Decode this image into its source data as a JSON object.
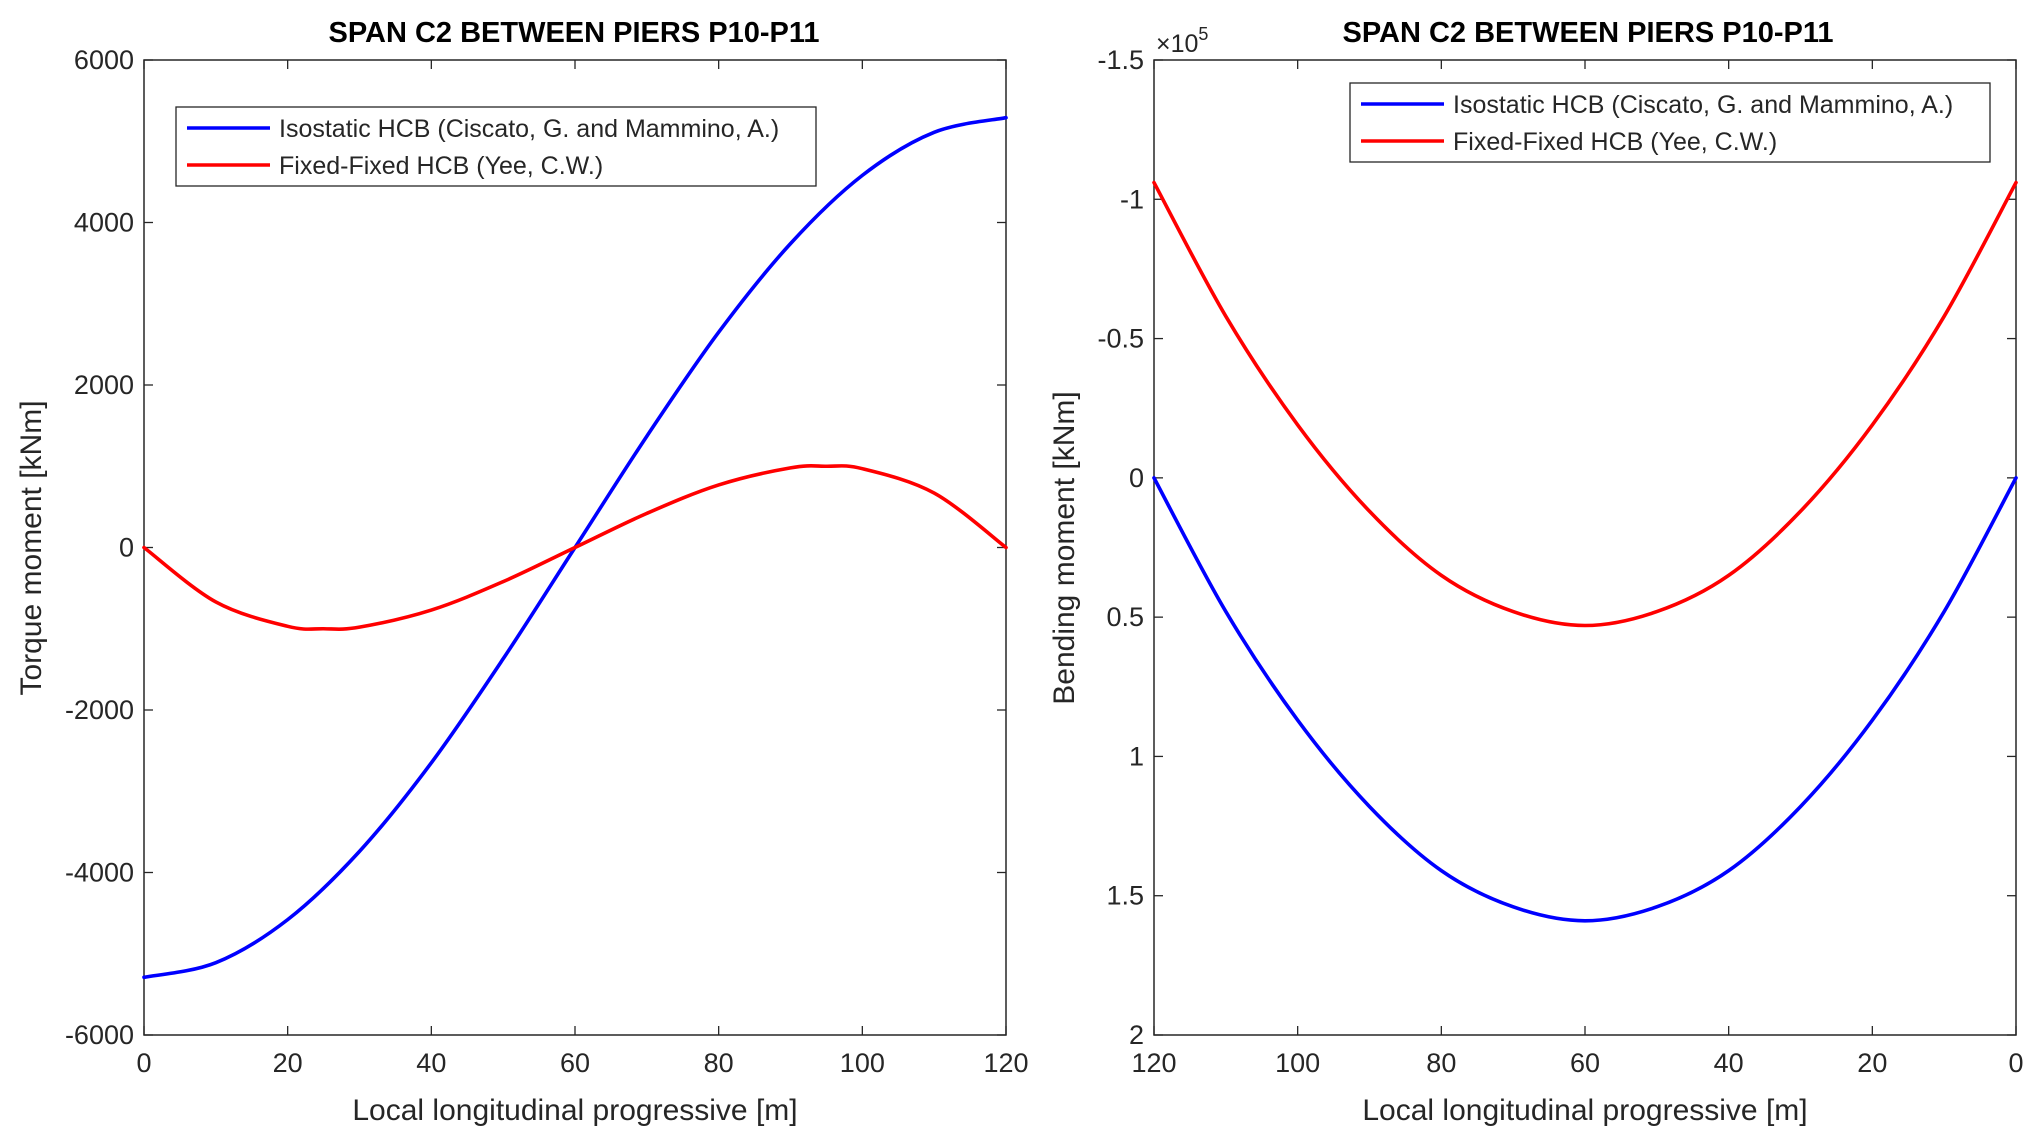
{
  "chart_data": [
    {
      "type": "line",
      "title": "SPAN C2 BETWEEN PIERS P10-P11",
      "xlabel": "Local longitudinal progressive [m]",
      "ylabel": "Torque moment [kNm]",
      "xlim": [
        0,
        120
      ],
      "ylim": [
        -6000,
        6000
      ],
      "x_reversed": false,
      "y_reversed": false,
      "xticks": [
        0,
        20,
        40,
        60,
        80,
        100,
        120
      ],
      "xtick_labels": [
        "0",
        "20",
        "40",
        "60",
        "80",
        "100",
        "120"
      ],
      "yticks": [
        -6000,
        -4000,
        -2000,
        0,
        2000,
        4000,
        6000
      ],
      "ytick_labels": [
        "-6000",
        "-4000",
        "-2000",
        "0",
        "2000",
        "4000",
        "6000"
      ],
      "grid": false,
      "legend_position": "top-left",
      "series": [
        {
          "name": "Isostatic HCB (Ciscato, G. and Mammino, A.)",
          "color": "#0000ff",
          "x": [
            0,
            10,
            20,
            30,
            40,
            50,
            60,
            70,
            80,
            90,
            100,
            110,
            120
          ],
          "y": [
            -5290,
            -5110,
            -4580,
            -3740,
            -2650,
            -1370,
            0,
            1370,
            2650,
            3740,
            4580,
            5110,
            5290
          ]
        },
        {
          "name": "Fixed-Fixed HCB (Yee, C.W.)",
          "color": "#ff0000",
          "x": [
            0,
            10,
            20,
            25,
            30,
            40,
            50,
            60,
            70,
            80,
            90,
            95,
            100,
            110,
            120
          ],
          "y": [
            0,
            -670,
            -970,
            -1000,
            -980,
            -770,
            -420,
            0,
            420,
            770,
            980,
            1000,
            970,
            670,
            0
          ]
        }
      ]
    },
    {
      "type": "line",
      "title": "SPAN C2 BETWEEN PIERS P10-P11",
      "xlabel": "Local longitudinal progressive [m]",
      "ylabel": "Bending moment [kNm]",
      "y_exponent_base": "×10",
      "y_exponent_power": "5",
      "xlim": [
        0,
        120
      ],
      "ylim": [
        -1.5,
        2
      ],
      "x_reversed": true,
      "y_reversed": true,
      "xticks": [
        120,
        100,
        80,
        60,
        40,
        20,
        0
      ],
      "xtick_labels": [
        "120",
        "100",
        "80",
        "60",
        "40",
        "20",
        "0"
      ],
      "yticks": [
        -1.5,
        -1,
        -0.5,
        0,
        0.5,
        1,
        1.5,
        2
      ],
      "ytick_labels": [
        "-1.5",
        "-1",
        "-0.5",
        "0",
        "0.5",
        "1",
        "1.5",
        "2"
      ],
      "grid": false,
      "legend_position": "top-right",
      "series": [
        {
          "name": "Isostatic HCB (Ciscato, G. and Mammino, A.)",
          "color": "#0000ff",
          "x": [
            0,
            10,
            20,
            30,
            40,
            50,
            60,
            70,
            80,
            90,
            100,
            110,
            120
          ],
          "y": [
            0,
            0.48,
            0.87,
            1.18,
            1.41,
            1.54,
            1.59,
            1.54,
            1.41,
            1.18,
            0.87,
            0.48,
            0
          ]
        },
        {
          "name": "Fixed-Fixed HCB (Yee, C.W.)",
          "color": "#ff0000",
          "x": [
            0,
            10,
            20,
            30,
            40,
            50,
            60,
            70,
            80,
            90,
            100,
            110,
            120
          ],
          "y": [
            -1.06,
            -0.58,
            -0.19,
            0.12,
            0.35,
            0.48,
            0.53,
            0.48,
            0.35,
            0.12,
            -0.19,
            -0.58,
            -1.06
          ]
        }
      ]
    }
  ]
}
